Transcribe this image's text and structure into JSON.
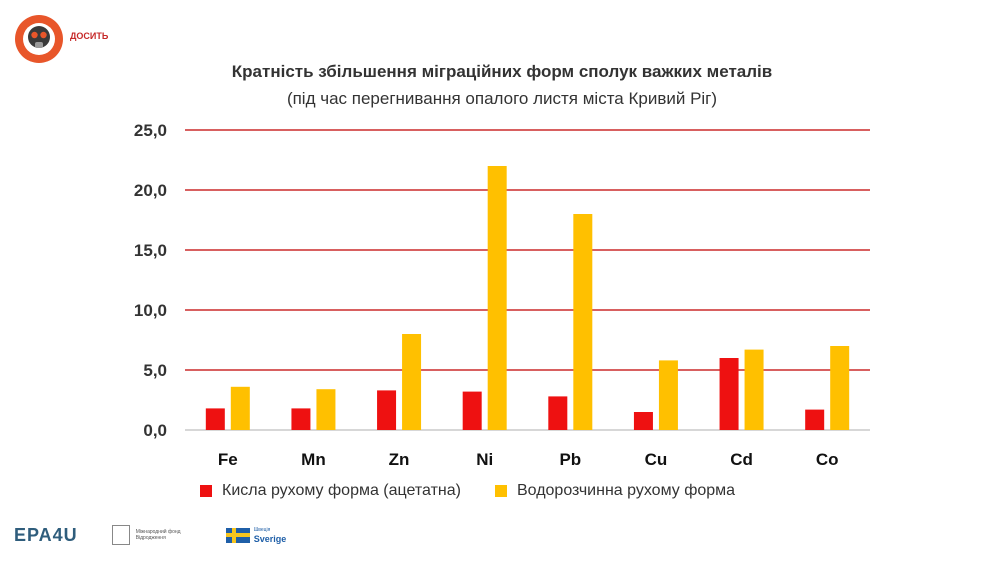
{
  "logo": {
    "text": "ДОСИТЬ",
    "brand_color": "#e8562a"
  },
  "footer": {
    "epa_logo": "EPA4U",
    "irf_text": "Міжнародний фонд Відродження",
    "sweden_top": "Швеція",
    "sweden_bottom": "Sverige"
  },
  "chart_data": {
    "type": "bar",
    "title": "Кратність збільшення міграційних форм сполук важких металів",
    "subtitle": "(під час перегнивання опалого листя міста Кривий Ріг)",
    "categories": [
      "Fe",
      "Mn",
      "Zn",
      "Ni",
      "Pb",
      "Cu",
      "Cd",
      "Co"
    ],
    "series": [
      {
        "name": "Кисла рухому форма (ацетатна)",
        "color": "#ee1111",
        "values": [
          1.8,
          1.8,
          3.3,
          3.2,
          2.8,
          1.5,
          6.0,
          1.7
        ]
      },
      {
        "name": "Водорозчинна рухому форма",
        "color": "#ffc000",
        "values": [
          3.6,
          3.4,
          8.0,
          22.0,
          18.0,
          5.8,
          6.7,
          7.0
        ]
      }
    ],
    "ylim": [
      0,
      25
    ],
    "yticks": [
      "0,0",
      "5,0",
      "10,0",
      "15,0",
      "20,0",
      "25,0"
    ],
    "grid": true,
    "grid_color": "#c00000",
    "legend_position": "bottom"
  }
}
